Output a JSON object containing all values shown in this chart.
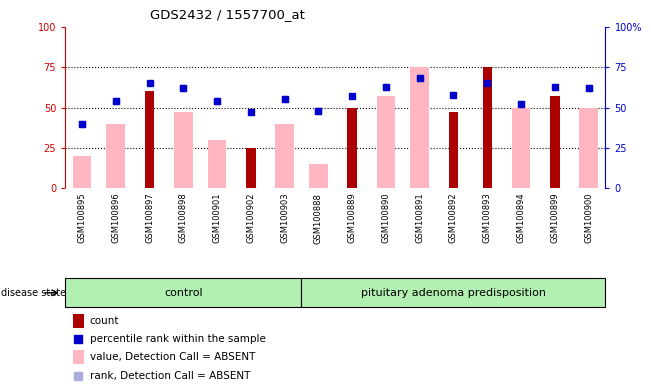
{
  "title": "GDS2432 / 1557700_at",
  "samples": [
    "GSM100895",
    "GSM100896",
    "GSM100897",
    "GSM100898",
    "GSM100901",
    "GSM100902",
    "GSM100903",
    "GSM100888",
    "GSM100889",
    "GSM100890",
    "GSM100891",
    "GSM100892",
    "GSM100893",
    "GSM100894",
    "GSM100899",
    "GSM100900"
  ],
  "count": [
    0,
    0,
    60,
    0,
    0,
    25,
    0,
    0,
    50,
    0,
    0,
    47,
    75,
    0,
    57,
    0
  ],
  "percentile_rank": [
    40,
    54,
    65,
    62,
    54,
    47,
    55,
    48,
    57,
    63,
    68,
    58,
    65,
    52,
    63,
    62
  ],
  "value_absent": [
    20,
    40,
    0,
    47,
    30,
    0,
    40,
    15,
    0,
    57,
    75,
    0,
    0,
    50,
    0,
    50
  ],
  "rank_absent": [
    40,
    54,
    0,
    62,
    54,
    0,
    55,
    48,
    0,
    63,
    68,
    0,
    0,
    52,
    0,
    62
  ],
  "group_labels": [
    "control",
    "pituitary adenoma predisposition"
  ],
  "group_split": 7,
  "control_color": "#b2f0b2",
  "disease_color": "#b2f0b2",
  "bar_color_count": "#AA0000",
  "bar_color_value": "#FFB6C1",
  "dot_color_rank": "#0000CC",
  "dot_color_rank_absent": "#AAAADD",
  "left_axis_color": "#CC0000",
  "right_axis_color": "#0000CC",
  "ylim": [
    0,
    100
  ],
  "tick_bg": "#C8C8C8"
}
